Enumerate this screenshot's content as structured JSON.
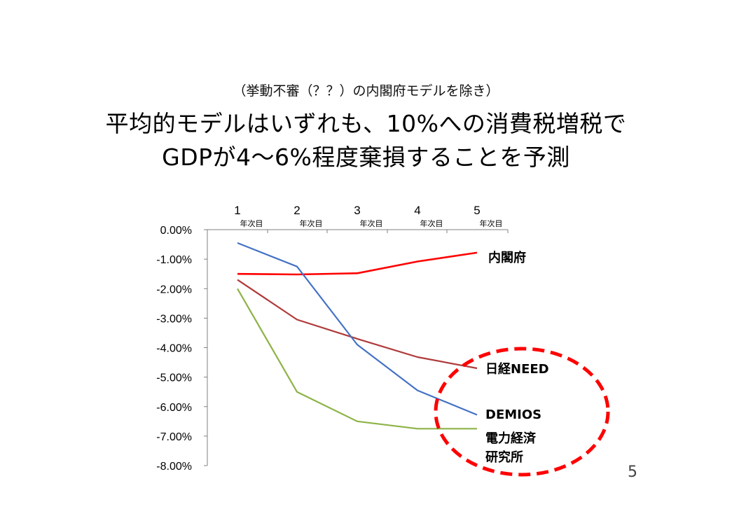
{
  "slide": {
    "subtitle": "（挙動不審（？？）の内閣府モデルを除き）",
    "title_line1": "平均的モデルはいずれも、10%への消費税増税で",
    "title_line2": "GDPが4～6%程度棄損することを予測",
    "page_number": "5"
  },
  "chart_data": {
    "type": "line",
    "categories": [
      "1",
      "2",
      "3",
      "4",
      "5"
    ],
    "category_sublabel": "年次目",
    "ylim": [
      -8,
      0
    ],
    "yticks": [
      "0.00%",
      "-1.00%",
      "-2.00%",
      "-3.00%",
      "-4.00%",
      "-5.00%",
      "-6.00%",
      "-7.00%",
      "-8.00%"
    ],
    "series": [
      {
        "name": "内閣府",
        "color": "#ff0000",
        "values": [
          -1.5,
          -1.52,
          -1.48,
          -1.08,
          -0.78
        ]
      },
      {
        "name": "日経NEED",
        "color": "#b03a3a",
        "values": [
          -1.7,
          -3.05,
          -3.7,
          -4.32,
          -4.7
        ]
      },
      {
        "name": "DEMIOS",
        "color": "#4472c4",
        "values": [
          -0.45,
          -1.25,
          -3.9,
          -5.45,
          -6.28
        ]
      },
      {
        "name": "電力経済\n研究所",
        "color": "#8db348",
        "values": [
          -2.0,
          -5.5,
          -6.5,
          -6.75,
          -6.75
        ]
      }
    ],
    "highlight_color": "#ff0000"
  }
}
